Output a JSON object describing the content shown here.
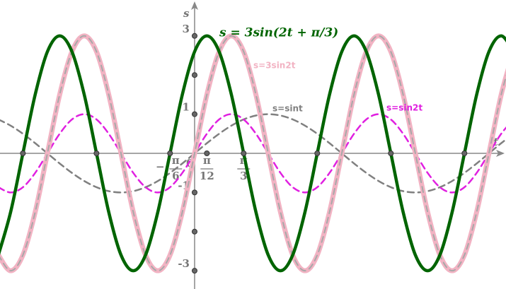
{
  "chart_data": {
    "type": "line",
    "title": "s = 3sin(2t + π/3)",
    "x_label": "t",
    "y_label": "s",
    "xlim": [
      -4.154,
      6.647
    ],
    "ylim": [
      -3.466,
      3.917
    ],
    "xticks": [
      {
        "value": -0.524,
        "label": "−π/6"
      },
      {
        "value": 0.262,
        "label": "π/12"
      },
      {
        "value": 1.047,
        "label": "π/3"
      }
    ],
    "yticks": [
      -3,
      -1,
      1,
      3
    ],
    "origin_label": "0",
    "x": [
      -4.189,
      -3.927,
      -3.665,
      -3.403,
      -3.142,
      -2.88,
      -2.618,
      -2.356,
      -2.094,
      -1.833,
      -1.571,
      -1.309,
      -1.047,
      -0.785,
      -0.524,
      -0.262,
      0,
      0.262,
      0.524,
      0.785,
      1.047,
      1.309,
      1.571,
      1.833,
      2.094,
      2.356,
      2.618,
      2.88,
      3.142,
      3.403,
      3.665,
      3.927,
      4.189,
      4.451,
      4.712,
      4.974,
      5.236,
      5.498,
      5.76,
      6.021,
      6.283,
      6.545,
      6.807
    ],
    "series": [
      {
        "name": "s=sint",
        "color": "#808080",
        "style": "dashed",
        "values": [
          0.866,
          0.707,
          0.5,
          0.259,
          0,
          -0.259,
          -0.5,
          -0.707,
          -0.866,
          -0.966,
          -1,
          -0.966,
          -0.866,
          -0.707,
          -0.5,
          -0.259,
          0,
          0.259,
          0.5,
          0.707,
          0.866,
          0.966,
          1,
          0.966,
          0.866,
          0.707,
          0.5,
          0.259,
          0,
          -0.259,
          -0.5,
          -0.707,
          -0.866,
          -0.966,
          -1,
          -0.966,
          -0.866,
          -0.707,
          -0.5,
          -0.259,
          0,
          0.259,
          0.5
        ]
      },
      {
        "name": "s=sin2t",
        "color": "#e020e0",
        "style": "dashed",
        "values": [
          -0.866,
          -1,
          -0.866,
          -0.5,
          0,
          0.5,
          0.866,
          1,
          0.866,
          0.5,
          0,
          -0.5,
          -0.866,
          -1,
          -0.866,
          -0.5,
          0,
          0.5,
          0.866,
          1,
          0.866,
          0.5,
          0,
          -0.5,
          -0.866,
          -1,
          -0.866,
          -0.5,
          0,
          0.5,
          0.866,
          1,
          0.866,
          0.5,
          0,
          -0.5,
          -0.866,
          -1,
          -0.866,
          -0.5,
          0,
          0.5,
          0.866
        ]
      },
      {
        "name": "s=3sin2t",
        "color": "#f2b3c3",
        "style": "thick-dashed",
        "values": [
          -2.598,
          -3,
          -2.598,
          -1.5,
          0,
          1.5,
          2.598,
          3,
          2.598,
          1.5,
          0,
          -1.5,
          -2.598,
          -3,
          -2.598,
          -1.5,
          0,
          1.5,
          2.598,
          3,
          2.598,
          1.5,
          0,
          -1.5,
          -2.598,
          -3,
          -2.598,
          -1.5,
          0,
          1.5,
          2.598,
          3,
          2.598,
          1.5,
          0,
          -1.5,
          -2.598,
          -3,
          -2.598,
          -1.5,
          0,
          1.5,
          2.598
        ]
      },
      {
        "name": "s = 3sin(2t + π/3)",
        "color": "#006400",
        "style": "thick",
        "values": [
          -2.598,
          -1.5,
          0,
          1.5,
          2.598,
          3,
          2.598,
          1.5,
          0,
          -1.5,
          -2.598,
          -3,
          -2.598,
          -1.5,
          0,
          1.5,
          2.598,
          3,
          2.598,
          1.5,
          0,
          -1.5,
          -2.598,
          -3,
          -2.598,
          -1.5,
          0,
          1.5,
          2.598,
          3,
          2.598,
          1.5,
          0,
          -1.5,
          -2.598,
          -3,
          -2.598,
          -1.5,
          0,
          1.5,
          2.598,
          3,
          2.598
        ]
      }
    ],
    "points": {
      "x": [
        0,
        0,
        0,
        0,
        0,
        0,
        -3.665,
        -2.094,
        -0.524,
        1.047,
        2.618,
        4.189,
        5.76,
        0.262
      ],
      "y": [
        3,
        2,
        1,
        -1,
        -2,
        -3,
        0,
        0,
        0,
        0,
        0,
        0,
        0,
        0
      ]
    }
  }
}
